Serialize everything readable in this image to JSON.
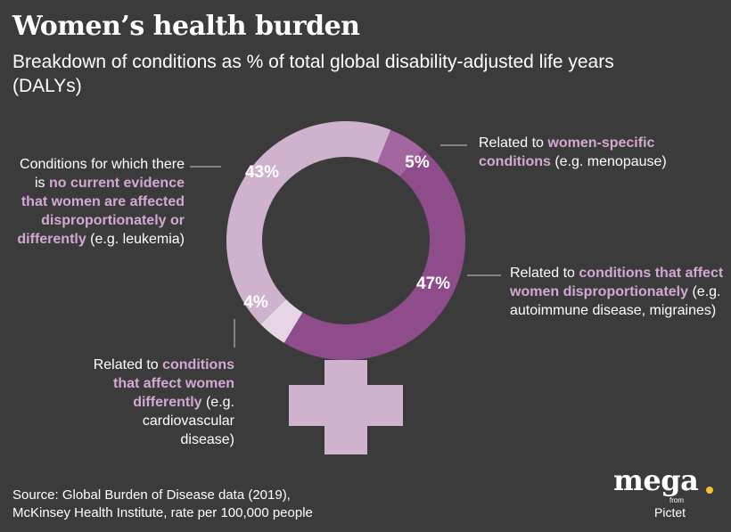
{
  "header": {
    "title": "Women’s health burden",
    "subtitle": "Breakdown of conditions as % of total global disability-adjusted life years (DALYs)"
  },
  "chart_data": {
    "type": "pie",
    "categories": [
      "Related to women-specific conditions",
      "Related to conditions that affect women disproportionately",
      "Related to conditions that affect women differently",
      "Conditions for which there is no current evidence that women are affected disproportionately or differently"
    ],
    "values": [
      5,
      47,
      4,
      43
    ],
    "labels": [
      "5%",
      "47%",
      "4%",
      "43%"
    ],
    "colors": [
      "#a4669f",
      "#8e4c8a",
      "#e6d5e4",
      "#cfb3ce"
    ]
  },
  "annotations": {
    "no_evidence": {
      "pre": "Conditions for which there is ",
      "hl": "no current evidence that women are affected disproportionately or differently",
      "post": " (e.g. leukemia)"
    },
    "women_specific": {
      "pre": "Related to ",
      "hl": "women-specific conditions",
      "post": " (e.g. menopause)"
    },
    "disproportionate": {
      "pre": "Related to ",
      "hl": "conditions that affect women disproportionately",
      "post": " (e.g. autoimmune disease, migraines)"
    },
    "differently": {
      "pre": "Related to ",
      "hl": "conditions that affect women differently",
      "post": " (e.g. cardiovascular disease)"
    }
  },
  "source": {
    "line1": "Source: Global Burden of Disease data (2019),",
    "line2": "McKinsey Health Institute, rate per 100,000 people"
  },
  "logo": {
    "word": "mega",
    "from": "from",
    "brand": "Pictet",
    "dot_color": "#f2c230"
  }
}
